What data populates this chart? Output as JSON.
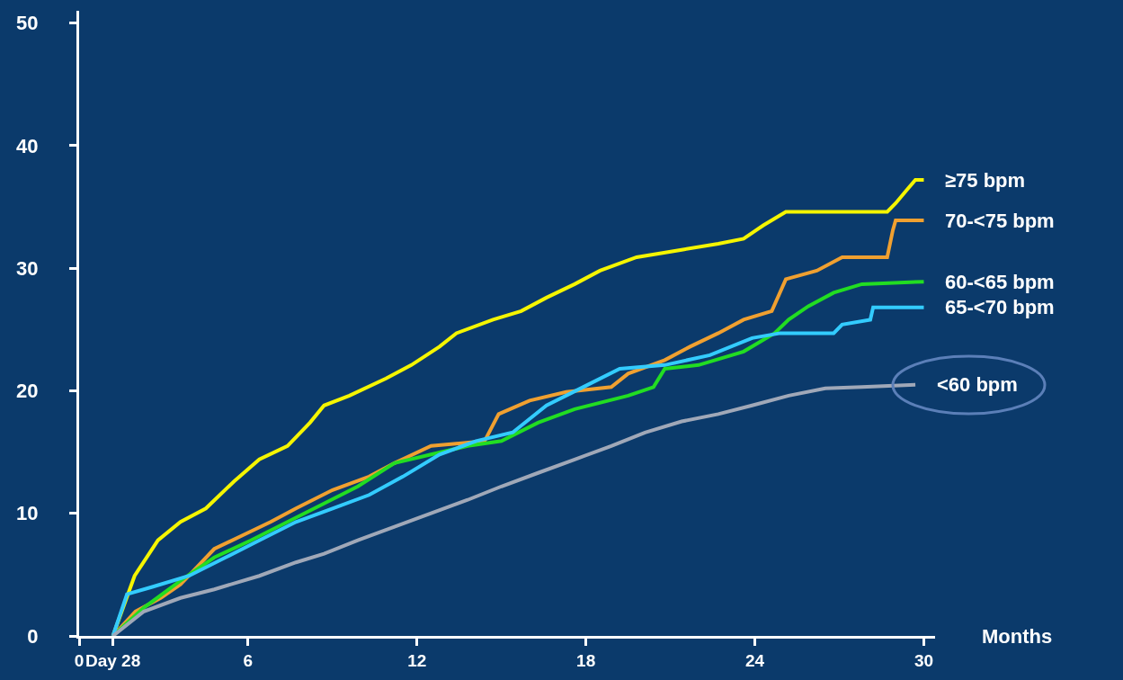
{
  "chart_data": {
    "type": "line",
    "xlabel": "Months",
    "xlim": [
      0,
      30.4
    ],
    "xticks": [
      0,
      {
        "value": 1.2,
        "label": "Day 28"
      },
      6,
      12,
      18,
      24,
      30
    ],
    "ylim": [
      0,
      51
    ],
    "yticks": [
      0,
      10,
      20,
      30,
      40,
      50
    ],
    "grid": false,
    "legend": false,
    "marker": "none",
    "line_style": "solid",
    "series": [
      {
        "name": "≥75 bpm",
        "color": "#f5f500",
        "x": [
          1.2,
          1.97,
          2.8,
          3.6,
          4.5,
          5.5,
          6.4,
          7.4,
          8.2,
          8.7,
          9.6,
          10.9,
          11.8,
          12.8,
          13.4,
          14.7,
          15.7,
          16.6,
          17.6,
          18.5,
          19.8,
          21.4,
          22.7,
          23.6,
          24.3,
          25.1,
          28.7,
          29,
          29.4,
          29.7,
          30
        ],
        "values": [
          0,
          4.9,
          7.8,
          9.3,
          10.4,
          12.6,
          14.4,
          15.5,
          17.4,
          18.8,
          19.6,
          21,
          22.1,
          23.6,
          24.7,
          25.8,
          26.5,
          27.6,
          28.7,
          29.8,
          30.9,
          31.5,
          32,
          32.4,
          33.5,
          34.6,
          34.6,
          35.3,
          36.4,
          37.2,
          37.2
        ]
      },
      {
        "name": "70-<75 bpm",
        "color": "#f0a030",
        "x": [
          1.2,
          2,
          2.9,
          3.6,
          4.8,
          5.8,
          6.8,
          7.7,
          9,
          10.3,
          11.2,
          12.5,
          14.4,
          14.9,
          16,
          17.3,
          18.9,
          19.5,
          20.8,
          21.7,
          22.7,
          23.6,
          24.6,
          25.1,
          26.2,
          27.1,
          28.7,
          28.9,
          29,
          30
        ],
        "values": [
          0,
          2,
          3.1,
          4.2,
          7.1,
          8.2,
          9.3,
          10.4,
          11.9,
          13,
          14.1,
          15.5,
          15.9,
          18.1,
          19.2,
          19.9,
          20.3,
          21.4,
          22.5,
          23.6,
          24.7,
          25.8,
          26.5,
          29.1,
          29.8,
          30.9,
          30.9,
          33.1,
          33.9,
          33.9
        ]
      },
      {
        "name": "60-<65 bpm",
        "color": "#22dd22",
        "x": [
          1.2,
          2.3,
          3.6,
          4.8,
          6.1,
          7.4,
          8.7,
          9.9,
          11.2,
          12.5,
          13.8,
          15,
          16.3,
          17.6,
          19.5,
          20.4,
          20.8,
          22,
          23.6,
          24.7,
          25.2,
          25.9,
          26.8,
          27.8,
          30
        ],
        "values": [
          0,
          2.3,
          4.5,
          6.4,
          7.8,
          9.3,
          10.8,
          12.2,
          14.1,
          14.8,
          15.5,
          15.9,
          17.4,
          18.5,
          19.6,
          20.3,
          21.8,
          22.1,
          23.2,
          24.7,
          25.8,
          26.9,
          28,
          28.7,
          28.9
        ]
      },
      {
        "name": "65-<70 bpm",
        "color": "#33ccff",
        "x": [
          1.2,
          1.7,
          2.6,
          3.9,
          5.2,
          6.4,
          7.7,
          9,
          10.3,
          11.5,
          12.8,
          14.1,
          15.4,
          16.6,
          17.9,
          19.2,
          20.8,
          22.4,
          23.9,
          24.9,
          26.8,
          27.1,
          28.1,
          28.2,
          30
        ],
        "values": [
          0,
          3.4,
          4,
          4.9,
          6.4,
          7.8,
          9.3,
          10.4,
          11.5,
          13,
          14.8,
          15.9,
          16.6,
          18.8,
          20.3,
          21.8,
          22.1,
          22.9,
          24.3,
          24.7,
          24.7,
          25.4,
          25.8,
          26.8,
          26.8
        ]
      },
      {
        "name": "<60 bpm",
        "color": "#a0a8b8",
        "x": [
          1.2,
          2.3,
          3.6,
          4.8,
          6.4,
          7.7,
          8.7,
          9.9,
          11.2,
          12.5,
          13.8,
          15,
          16.3,
          17.6,
          18.9,
          20.1,
          21.4,
          22.7,
          23.9,
          25.2,
          26.5,
          27.8,
          29.7
        ],
        "values": [
          0,
          2,
          3.1,
          3.8,
          4.9,
          6,
          6.7,
          7.8,
          8.9,
          10,
          11.1,
          12.2,
          13.3,
          14.4,
          15.5,
          16.6,
          17.5,
          18.1,
          18.8,
          19.6,
          20.2,
          20.3,
          20.5
        ]
      }
    ]
  }
}
